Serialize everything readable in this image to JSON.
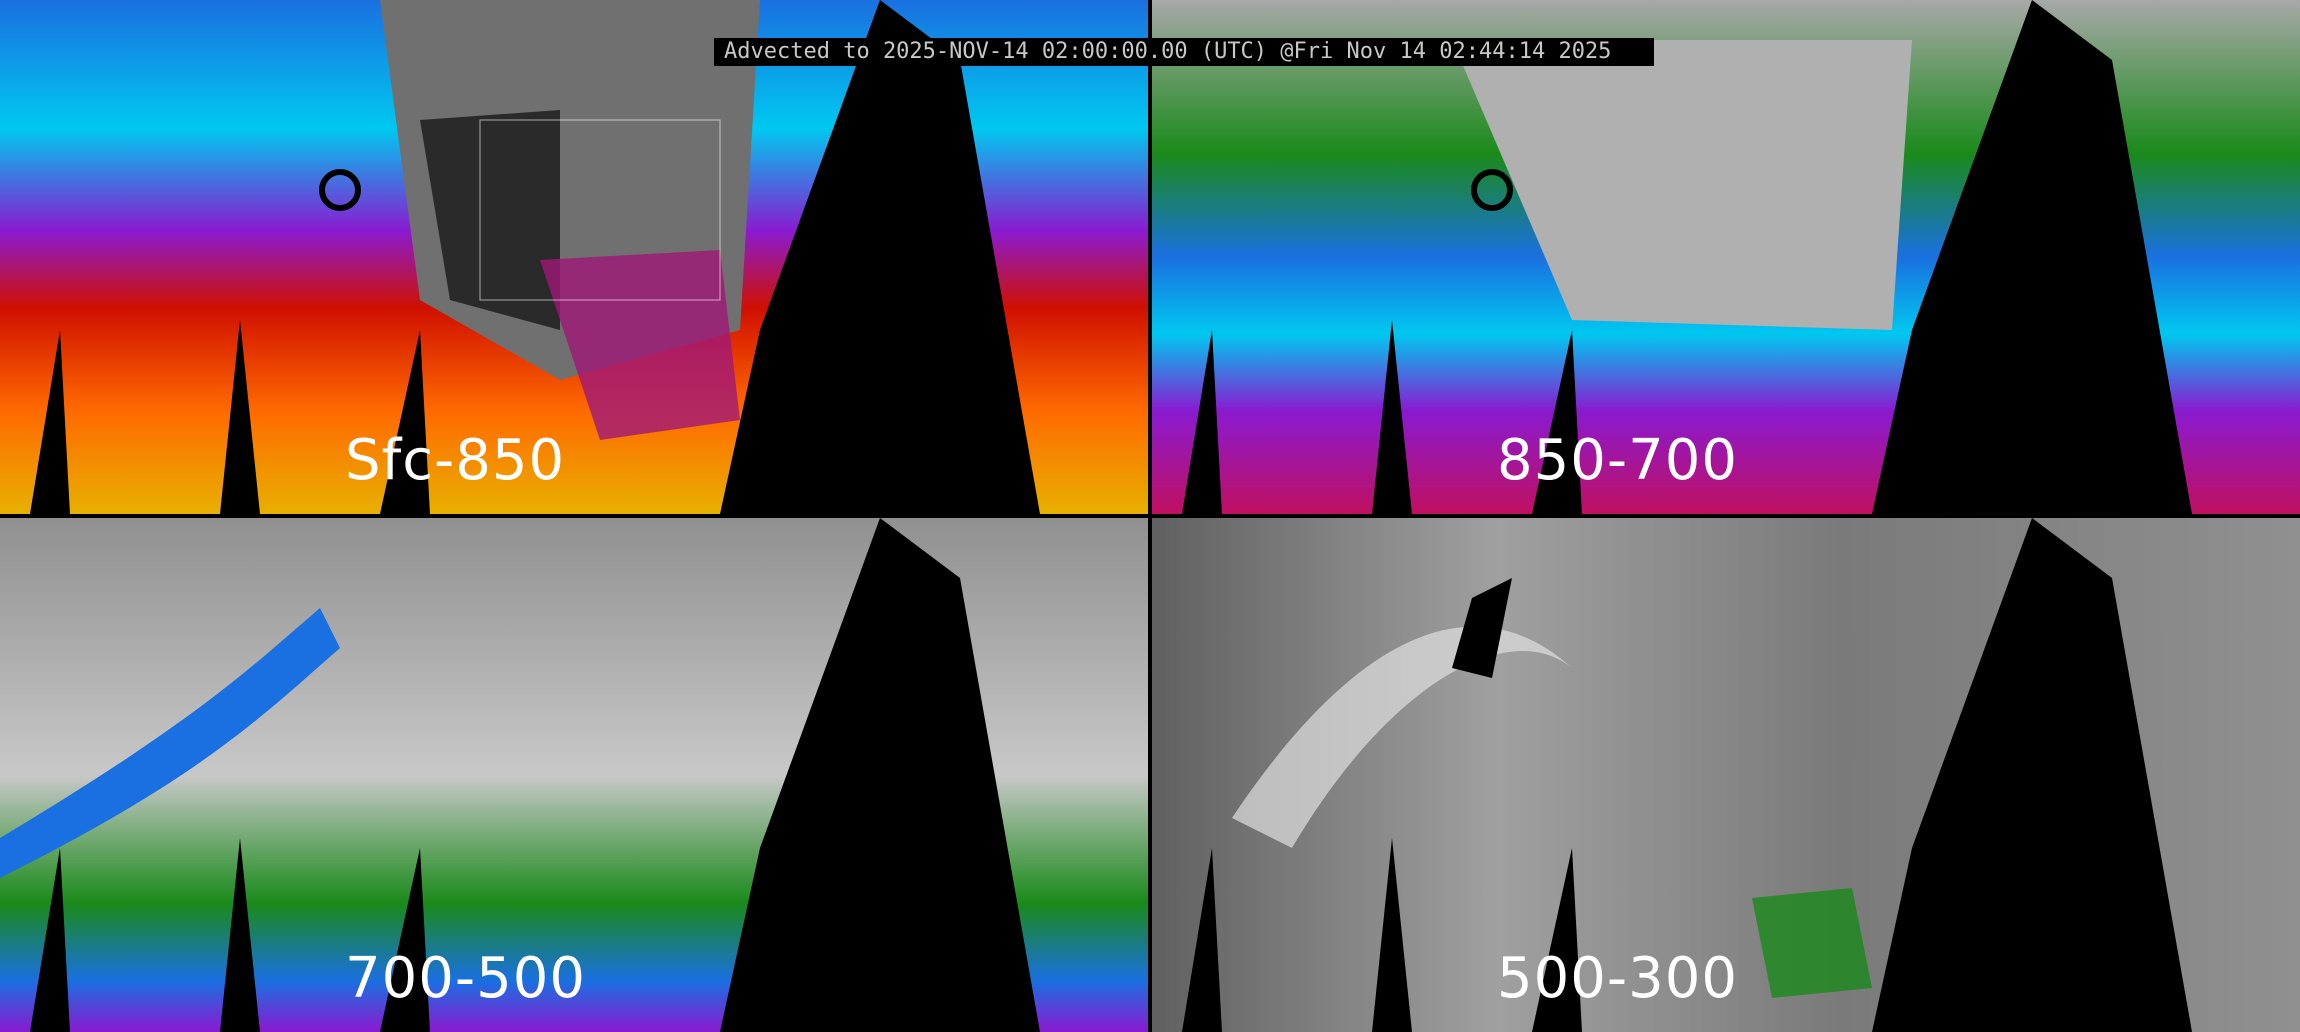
{
  "title": "Advected to 2025-NOV-14 02:00:00.00 (UTC) @Fri Nov 14 02:44:14 2025",
  "panels": [
    {
      "label": "Sfc-850",
      "palette": [
        "#e8c000",
        "#ff6000",
        "#d01000",
        "#8a1ad0",
        "#00d8ff",
        "#1a70e0",
        "#1a8a1a",
        "#808080"
      ]
    },
    {
      "label": "850-700",
      "palette": [
        "#8a1ad0",
        "#d01060",
        "#1a70e0",
        "#00d8ff",
        "#1a8a1a",
        "#c8c8c8"
      ]
    },
    {
      "label": "700-500",
      "palette": [
        "#8a1ad0",
        "#1a70e0",
        "#1a8a1a",
        "#c8c8c8"
      ]
    },
    {
      "label": "500-300",
      "palette": [
        "#1a8a1a",
        "#e0e0e0",
        "#606060"
      ]
    }
  ],
  "colors": {
    "divider": "#000000",
    "swath_gap": "#000000",
    "boundaries": "#ffffff"
  }
}
